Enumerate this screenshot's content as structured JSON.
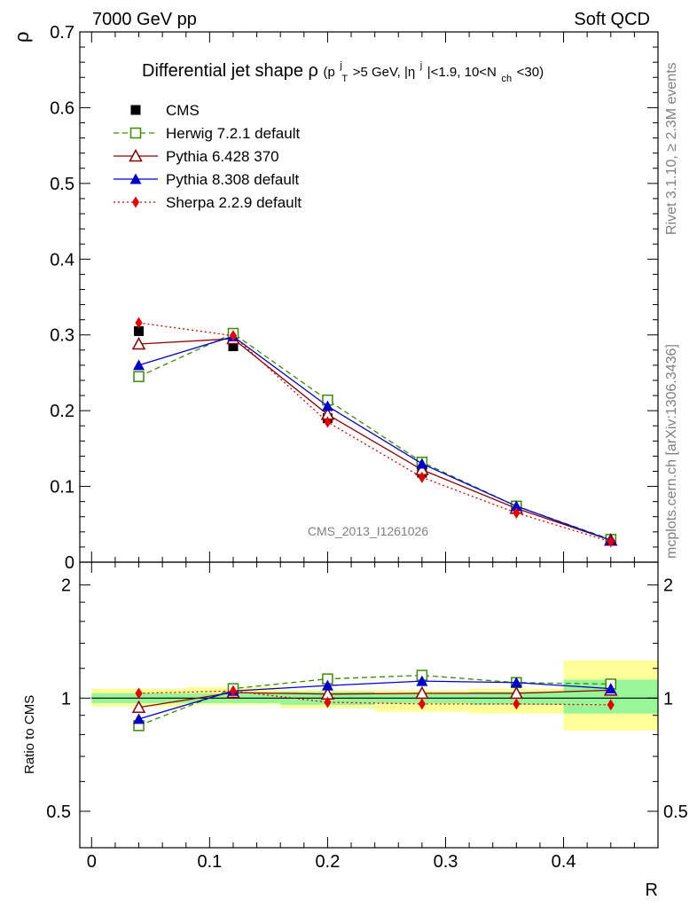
{
  "header": {
    "left": "7000 GeV pp",
    "right": "Soft QCD"
  },
  "side": {
    "rivet": "Rivet 3.1.10, ≥ 2.3M events",
    "mcplots": "mcplots.cern.ch [arXiv:1306.3436]"
  },
  "chart_data": [
    {
      "type": "line",
      "title": "Differential jet shape ρ (p_T^j > 5 GeV, |η^j| < 1.9, 10 < N_ch < 30)",
      "title_parts": {
        "main": "Differential jet shape",
        "rho": "ρ",
        "open": " (p",
        "sup_j": "j",
        "sub_T": "T",
        "pt_cut": ">5 GeV, |η",
        "sup_j2": "j",
        "eta_cut": "|<1.9, 10<N",
        "sub_ch": "ch",
        "close": "<30)"
      },
      "watermark": "CMS_2013_I1261026",
      "ylabel": "ρ",
      "xlabel": "R",
      "xlim": [
        -0.01,
        0.48
      ],
      "ylim": [
        0,
        0.7
      ],
      "yticks": [
        0,
        0.1,
        0.2,
        0.3,
        0.4,
        0.5,
        0.6,
        0.7
      ],
      "ytick_labels": [
        "0",
        "0.1",
        "0.2",
        "0.3",
        "0.4",
        "0.5",
        "0.6",
        "0.7"
      ],
      "x": [
        0.04,
        0.12,
        0.2,
        0.28,
        0.36,
        0.44
      ],
      "legend_position": "top-left",
      "series": [
        {
          "name": "CMS",
          "color": "#000000",
          "marker": "square-filled",
          "line": "none",
          "values": [
            0.305,
            0.285,
            0.19,
            0.118,
            0.071,
            0.029
          ]
        },
        {
          "name": "Herwig 7.2.1 default",
          "color": "#3a8c00",
          "marker": "square-open",
          "line": "dashed",
          "values": [
            0.245,
            0.302,
            0.214,
            0.132,
            0.074,
            0.03
          ]
        },
        {
          "name": "Pythia 6.428 370",
          "color": "#8b0000",
          "marker": "triangle-open",
          "line": "solid",
          "values": [
            0.288,
            0.295,
            0.195,
            0.122,
            0.071,
            0.029
          ]
        },
        {
          "name": "Pythia 8.308 default",
          "color": "#0000cc",
          "marker": "triangle-filled",
          "line": "solid",
          "values": [
            0.26,
            0.298,
            0.206,
            0.13,
            0.074,
            0.029
          ]
        },
        {
          "name": "Sherpa 2.2.9 default",
          "color": "#e60000",
          "marker": "diamond-filled",
          "line": "dotted",
          "values": [
            0.316,
            0.299,
            0.185,
            0.112,
            0.065,
            0.027
          ]
        }
      ]
    },
    {
      "type": "line",
      "ylabel": "Ratio to CMS",
      "xlabel": "R",
      "xlim": [
        -0.01,
        0.48
      ],
      "ylim": [
        0.4,
        2.3
      ],
      "y_scale": "log",
      "yticks_major": [
        0.5,
        1,
        2
      ],
      "ytick_labels": [
        "0.5",
        "1",
        "2"
      ],
      "xticks": [
        0,
        0.1,
        0.2,
        0.3,
        0.4
      ],
      "xtick_labels": [
        "0",
        "0.1",
        "0.2",
        "0.3",
        "0.4"
      ],
      "x": [
        0.04,
        0.12,
        0.2,
        0.28,
        0.36,
        0.44
      ],
      "uncertainty_bands": {
        "bins": [
          [
            0.0,
            0.08
          ],
          [
            0.08,
            0.16
          ],
          [
            0.16,
            0.24
          ],
          [
            0.24,
            0.32
          ],
          [
            0.32,
            0.4
          ],
          [
            0.4,
            0.48
          ]
        ],
        "inner_color": "#98f598",
        "outer_color": "#ffff99",
        "inner": [
          [
            0.97,
            1.03
          ],
          [
            0.97,
            1.03
          ],
          [
            0.96,
            1.04
          ],
          [
            0.97,
            1.03
          ],
          [
            0.96,
            1.04
          ],
          [
            0.91,
            1.12
          ]
        ],
        "outer": [
          [
            0.95,
            1.06
          ],
          [
            0.96,
            1.07
          ],
          [
            0.94,
            1.05
          ],
          [
            0.92,
            1.05
          ],
          [
            0.91,
            1.06
          ],
          [
            0.82,
            1.26
          ]
        ]
      },
      "series": [
        {
          "name": "Herwig 7.2.1 default",
          "color": "#3a8c00",
          "marker": "square-open",
          "line": "dashed",
          "values": [
            0.845,
            1.06,
            1.125,
            1.15,
            1.1,
            1.09
          ]
        },
        {
          "name": "Pythia 6.428 370",
          "color": "#8b0000",
          "marker": "triangle-open",
          "line": "solid",
          "values": [
            0.945,
            1.035,
            1.025,
            1.03,
            1.03,
            1.05
          ]
        },
        {
          "name": "Pythia 8.308 default",
          "color": "#0000cc",
          "marker": "triangle-filled",
          "line": "solid",
          "values": [
            0.88,
            1.045,
            1.08,
            1.11,
            1.1,
            1.06
          ]
        },
        {
          "name": "Sherpa 2.2.9 default",
          "color": "#e60000",
          "marker": "diamond-filled",
          "line": "dotted",
          "values": [
            1.03,
            1.045,
            0.975,
            0.965,
            0.965,
            0.96
          ]
        }
      ]
    }
  ]
}
